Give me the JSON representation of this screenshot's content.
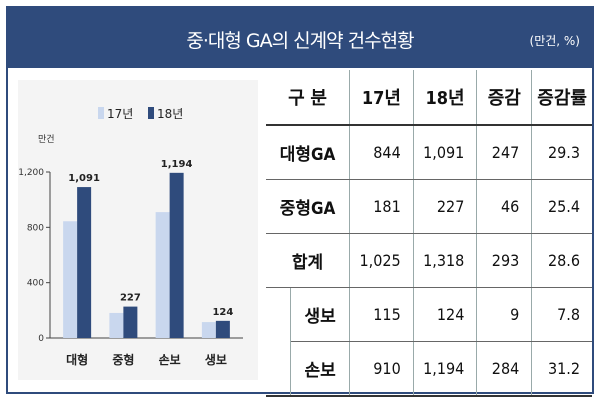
{
  "header": {
    "title": "중·대형 GA의 신계약 건수현황",
    "unit": "(만건, %)"
  },
  "table": {
    "columns": [
      "구 분",
      "17년",
      "18년",
      "증감",
      "증감률"
    ],
    "rows": [
      {
        "label": "대형GA",
        "v17": "844",
        "v18": "1,091",
        "diff": "247",
        "rate": "29.3"
      },
      {
        "label": "중형GA",
        "v17": "181",
        "v18": "227",
        "diff": "46",
        "rate": "25.4"
      },
      {
        "label": "합계",
        "v17": "1,025",
        "v18": "1,318",
        "diff": "293",
        "rate": "28.6"
      },
      {
        "label": "생보",
        "v17": "115",
        "v18": "124",
        "diff": "9",
        "rate": "7.8"
      },
      {
        "label": "손보",
        "v17": "910",
        "v18": "1,194",
        "diff": "284",
        "rate": "31.2"
      }
    ]
  },
  "chart_data": {
    "type": "bar",
    "ylabel": "만건",
    "ylim": [
      0,
      1200
    ],
    "yticks": [
      0,
      400,
      800,
      1200
    ],
    "ytick_labels": [
      "0",
      "400",
      "800",
      "1,200"
    ],
    "categories": [
      "대형",
      "중형",
      "손보",
      "생보"
    ],
    "series": [
      {
        "name": "17년",
        "values": [
          844,
          181,
          910,
          115
        ],
        "color": "#c9d7ee"
      },
      {
        "name": "18년",
        "values": [
          1091,
          227,
          1194,
          124
        ],
        "color": "#2f4b7c"
      }
    ],
    "data_labels": [
      "1,091",
      "227",
      "1,194",
      "124"
    ],
    "grid": false,
    "legend": "top"
  }
}
